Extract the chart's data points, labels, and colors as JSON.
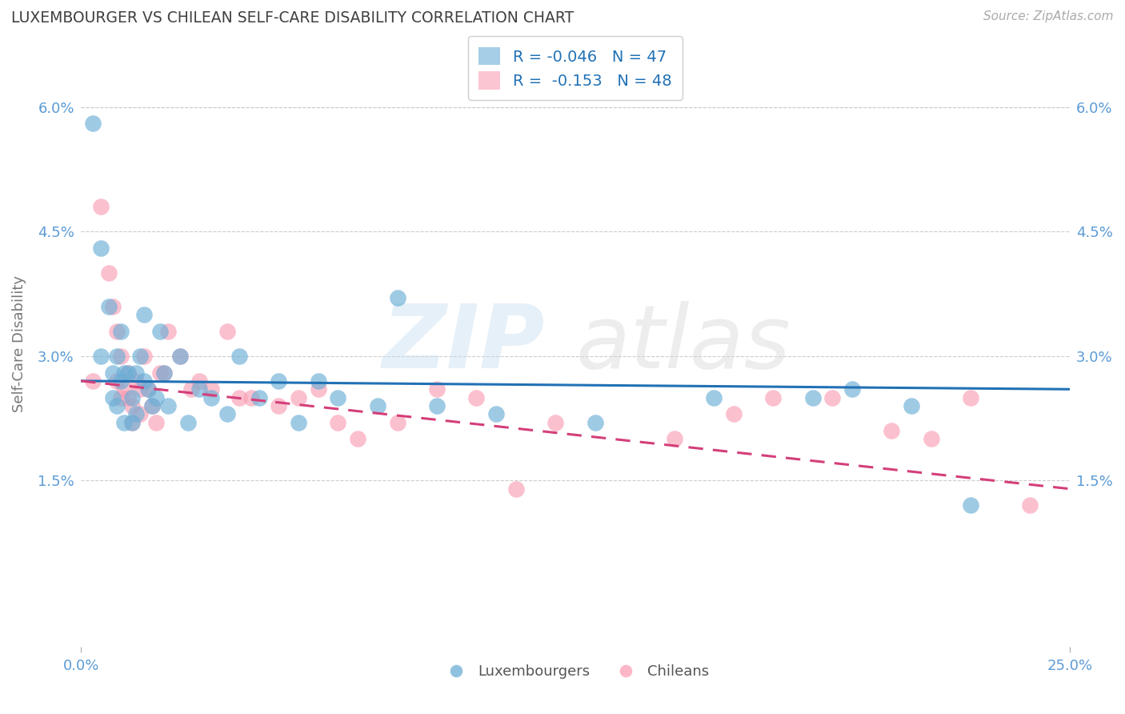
{
  "title": "LUXEMBOURGER VS CHILEAN SELF-CARE DISABILITY CORRELATION CHART",
  "source": "Source: ZipAtlas.com",
  "ylabel": "Self-Care Disability",
  "xlim": [
    0.0,
    0.25
  ],
  "ylim": [
    -0.005,
    0.068
  ],
  "yticks": [
    0.015,
    0.03,
    0.045,
    0.06
  ],
  "yticklabels": [
    "1.5%",
    "3.0%",
    "4.5%",
    "6.0%"
  ],
  "watermark": "ZIPatlas",
  "legend_R_lux": "R = -0.046",
  "legend_N_lux": "N = 47",
  "legend_R_chi": "R = -0.153",
  "legend_N_chi": "N = 48",
  "lux_color": "#6baed6",
  "chi_color": "#fa9fb5",
  "lux_line_color": "#2171b5",
  "chi_line_color": "#d43f7a",
  "background_color": "#ffffff",
  "title_color": "#404040",
  "axis_label_color": "#5b9bd5",
  "lux_scatter_x": [
    0.003,
    0.005,
    0.005,
    0.007,
    0.008,
    0.008,
    0.009,
    0.009,
    0.01,
    0.01,
    0.011,
    0.011,
    0.012,
    0.013,
    0.013,
    0.014,
    0.014,
    0.015,
    0.016,
    0.016,
    0.017,
    0.018,
    0.019,
    0.02,
    0.021,
    0.022,
    0.025,
    0.027,
    0.03,
    0.033,
    0.037,
    0.04,
    0.045,
    0.05,
    0.055,
    0.06,
    0.065,
    0.075,
    0.08,
    0.09,
    0.105,
    0.13,
    0.16,
    0.185,
    0.195,
    0.21,
    0.225
  ],
  "lux_scatter_y": [
    0.058,
    0.043,
    0.03,
    0.036,
    0.028,
    0.025,
    0.03,
    0.024,
    0.033,
    0.027,
    0.028,
    0.022,
    0.028,
    0.025,
    0.022,
    0.028,
    0.023,
    0.03,
    0.035,
    0.027,
    0.026,
    0.024,
    0.025,
    0.033,
    0.028,
    0.024,
    0.03,
    0.022,
    0.026,
    0.025,
    0.023,
    0.03,
    0.025,
    0.027,
    0.022,
    0.027,
    0.025,
    0.024,
    0.037,
    0.024,
    0.023,
    0.022,
    0.025,
    0.025,
    0.026,
    0.024,
    0.012
  ],
  "chi_scatter_x": [
    0.003,
    0.005,
    0.007,
    0.008,
    0.009,
    0.009,
    0.01,
    0.01,
    0.011,
    0.012,
    0.012,
    0.013,
    0.013,
    0.014,
    0.015,
    0.015,
    0.016,
    0.017,
    0.018,
    0.019,
    0.02,
    0.021,
    0.022,
    0.025,
    0.028,
    0.03,
    0.033,
    0.037,
    0.04,
    0.043,
    0.05,
    0.055,
    0.06,
    0.065,
    0.07,
    0.08,
    0.09,
    0.1,
    0.11,
    0.12,
    0.15,
    0.165,
    0.175,
    0.19,
    0.205,
    0.215,
    0.225,
    0.24
  ],
  "chi_scatter_y": [
    0.027,
    0.048,
    0.04,
    0.036,
    0.033,
    0.027,
    0.03,
    0.025,
    0.026,
    0.025,
    0.028,
    0.024,
    0.022,
    0.027,
    0.026,
    0.023,
    0.03,
    0.026,
    0.024,
    0.022,
    0.028,
    0.028,
    0.033,
    0.03,
    0.026,
    0.027,
    0.026,
    0.033,
    0.025,
    0.025,
    0.024,
    0.025,
    0.026,
    0.022,
    0.02,
    0.022,
    0.026,
    0.025,
    0.014,
    0.022,
    0.02,
    0.023,
    0.025,
    0.025,
    0.021,
    0.02,
    0.025,
    0.012
  ],
  "lux_line_x0": 0.0,
  "lux_line_y0": 0.027,
  "lux_line_x1": 0.25,
  "lux_line_y1": 0.026,
  "chi_line_x0": 0.0,
  "chi_line_y0": 0.027,
  "chi_line_x1": 0.25,
  "chi_line_y1": 0.014
}
